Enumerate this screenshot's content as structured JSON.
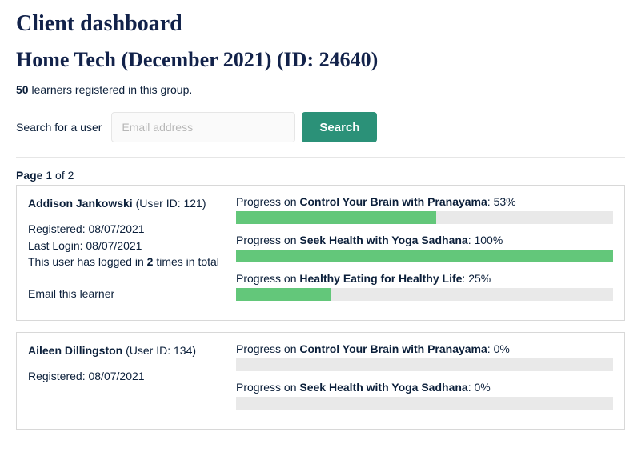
{
  "header": {
    "title": "Client dashboard",
    "group_title": "Home Tech (December 2021) (ID: 24640)"
  },
  "summary": {
    "count": "50",
    "text": " learners registered in this group."
  },
  "search": {
    "label": "Search for a user",
    "placeholder": "Email address",
    "button": "Search"
  },
  "pager": {
    "prefix": "Page",
    "current": " 1 ",
    "suffix": "of 2"
  },
  "colors": {
    "accent": "#2b9178",
    "bar_fill": "#63c77a",
    "bar_bg": "#e9e9e9",
    "border": "#d8d8d8",
    "text": "#0b1f3a"
  },
  "users": [
    {
      "name": "Addison Jankowski",
      "user_id_label": " (User ID: 121)",
      "registered": "Registered: 08/07/2021",
      "last_login": "Last Login: 08/07/2021",
      "login_count_pre": "This user has logged in ",
      "login_count": "2",
      "login_count_post": " times in total",
      "email_link": "Email this learner",
      "courses": [
        {
          "prefix": "Progress on ",
          "name": "Control Your Brain with Pranayama",
          "suffix": ": 53%",
          "pct": 53
        },
        {
          "prefix": "Progress on ",
          "name": "Seek Health with Yoga Sadhana",
          "suffix": ": 100%",
          "pct": 100
        },
        {
          "prefix": "Progress on ",
          "name": "Healthy Eating for Healthy Life",
          "suffix": ": 25%",
          "pct": 25
        }
      ]
    },
    {
      "name": "Aileen Dillingston",
      "user_id_label": " (User ID: 134)",
      "registered": "Registered: 08/07/2021",
      "last_login": "",
      "login_count_pre": "",
      "login_count": "",
      "login_count_post": "",
      "email_link": "",
      "courses": [
        {
          "prefix": "Progress on ",
          "name": "Control Your Brain with Pranayama",
          "suffix": ": 0%",
          "pct": 0
        },
        {
          "prefix": "Progress on ",
          "name": "Seek Health with Yoga Sadhana",
          "suffix": ": 0%",
          "pct": 0
        }
      ]
    }
  ]
}
